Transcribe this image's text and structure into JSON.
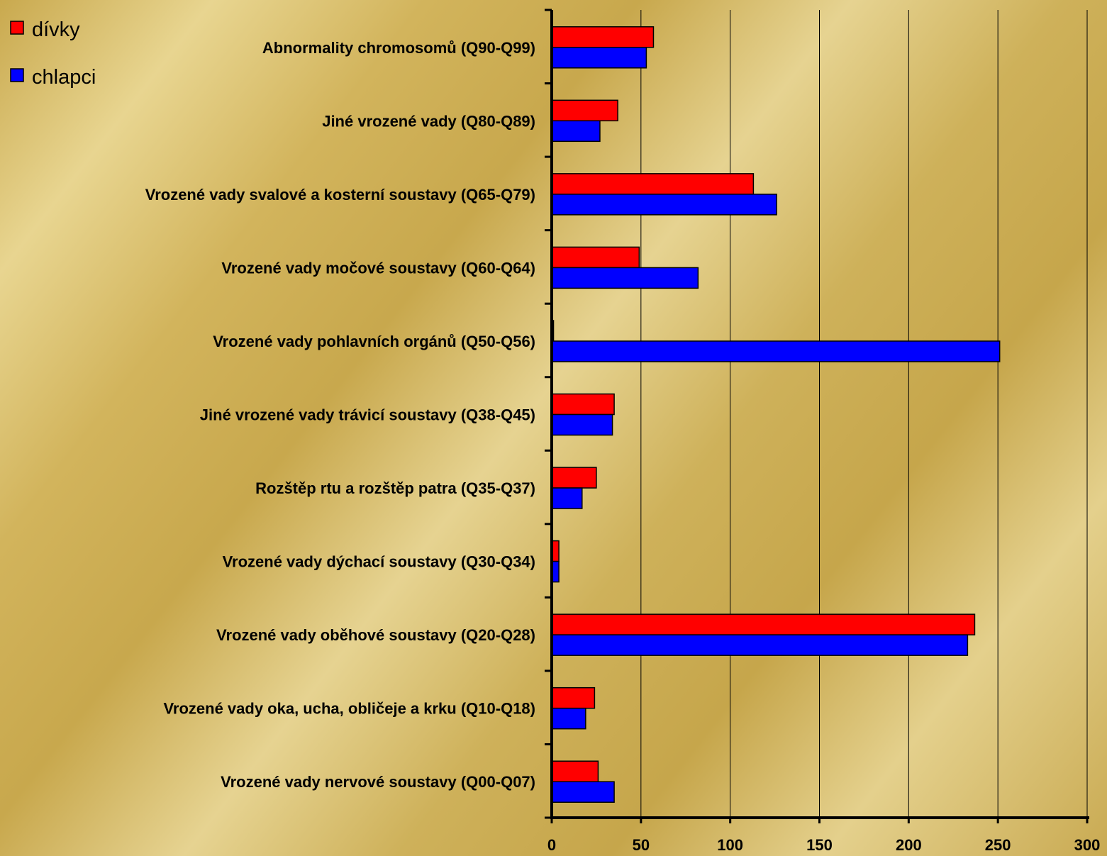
{
  "chart_data": {
    "type": "bar",
    "orientation": "horizontal",
    "categories": [
      "Abnormality chromosomů (Q90-Q99)",
      "Jiné vrozené vady (Q80-Q89)",
      "Vrozené vady svalové a kosterní soustavy (Q65-Q79)",
      "Vrozené vady močové soustavy (Q60-Q64)",
      "Vrozené vady pohlavních orgánů (Q50-Q56)",
      "Jiné vrozené vady trávicí soustavy (Q38-Q45)",
      "Rozštěp rtu a rozštěp patra (Q35-Q37)",
      "Vrozené vady dýchací soustavy (Q30-Q34)",
      "Vrozené vady oběhové soustavy (Q20-Q28)",
      "Vrozené vady oka, ucha, obličeje a krku (Q10-Q18)",
      "Vrozené vady nervové soustavy (Q00-Q07)"
    ],
    "series": [
      {
        "name": "dívky",
        "color": "#ff0000",
        "values": [
          57,
          37,
          113,
          49,
          1,
          35,
          25,
          4,
          237,
          24,
          26
        ]
      },
      {
        "name": "chlapci",
        "color": "#0000ff",
        "values": [
          53,
          27,
          126,
          82,
          251,
          34,
          17,
          4,
          233,
          19,
          35
        ]
      }
    ],
    "xlim": [
      0,
      300
    ],
    "xticks": [
      0,
      50,
      100,
      150,
      200,
      250,
      300
    ],
    "grid": "vertical",
    "legend_position": "top-left"
  }
}
